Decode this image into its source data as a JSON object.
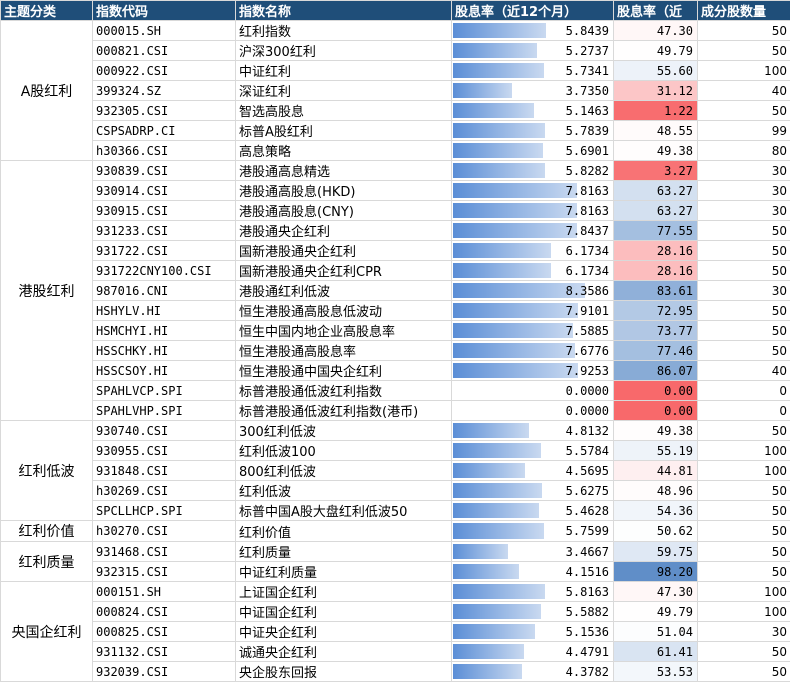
{
  "chart_data": {
    "type": "table",
    "headers": [
      "主题分类",
      "指数代码",
      "指数名称",
      "股息率（近12个月）",
      "股息率（近",
      "成分股数量"
    ],
    "groups": [
      {
        "category": "A股红利",
        "rows": [
          {
            "code": "000015.SH",
            "name": "红利指数",
            "yield": "5.8439",
            "pctile": "47.30",
            "count": "50"
          },
          {
            "code": "000821.CSI",
            "name": "沪深300红利",
            "yield": "5.2737",
            "pctile": "49.79",
            "count": "50"
          },
          {
            "code": "000922.CSI",
            "name": "中证红利",
            "yield": "5.7341",
            "pctile": "55.60",
            "count": "100"
          },
          {
            "code": "399324.SZ",
            "name": "深证红利",
            "yield": "3.7350",
            "pctile": "31.12",
            "count": "40"
          },
          {
            "code": "932305.CSI",
            "name": "智选高股息",
            "yield": "5.1463",
            "pctile": "1.22",
            "count": "50"
          },
          {
            "code": "CSPSADRP.CI",
            "name": "标普A股红利",
            "yield": "5.7839",
            "pctile": "48.55",
            "count": "99"
          },
          {
            "code": "h30366.CSI",
            "name": "高息策略",
            "yield": "5.6901",
            "pctile": "49.38",
            "count": "80"
          }
        ]
      },
      {
        "category": "港股红利",
        "rows": [
          {
            "code": "930839.CSI",
            "name": "港股通高息精选",
            "yield": "5.8282",
            "pctile": "3.27",
            "count": "30"
          },
          {
            "code": "930914.CSI",
            "name": "港股通高股息(HKD)",
            "yield": "7.8163",
            "pctile": "63.27",
            "count": "30"
          },
          {
            "code": "930915.CSI",
            "name": "港股通高股息(CNY)",
            "yield": "7.8163",
            "pctile": "63.27",
            "count": "30"
          },
          {
            "code": "931233.CSI",
            "name": "港股通央企红利",
            "yield": "7.8437",
            "pctile": "77.55",
            "count": "50"
          },
          {
            "code": "931722.CSI",
            "name": "国新港股通央企红利",
            "yield": "6.1734",
            "pctile": "28.16",
            "count": "50"
          },
          {
            "code": "931722CNY100.CSI",
            "name": "国新港股通央企红利CPR",
            "yield": "6.1734",
            "pctile": "28.16",
            "count": "50"
          },
          {
            "code": "987016.CNI",
            "name": "港股通红利低波",
            "yield": "8.3586",
            "pctile": "83.61",
            "count": "30"
          },
          {
            "code": "HSHYLV.HI",
            "name": "恒生港股通高股息低波动",
            "yield": "7.9101",
            "pctile": "72.95",
            "count": "50"
          },
          {
            "code": "HSMCHYI.HI",
            "name": "恒生中国内地企业高股息率",
            "yield": "7.5885",
            "pctile": "73.77",
            "count": "50"
          },
          {
            "code": "HSSCHKY.HI",
            "name": "恒生港股通高股息率",
            "yield": "7.6776",
            "pctile": "77.46",
            "count": "50"
          },
          {
            "code": "HSSCSOY.HI",
            "name": "恒生港股通中国央企红利",
            "yield": "7.9253",
            "pctile": "86.07",
            "count": "40"
          },
          {
            "code": "SPAHLVCP.SPI",
            "name": "标普港股通低波红利指数",
            "yield": "0.0000",
            "pctile": "0.00",
            "count": "0"
          },
          {
            "code": "SPAHLVHP.SPI",
            "name": "标普港股通低波红利指数(港币)",
            "yield": "0.0000",
            "pctile": "0.00",
            "count": "0"
          }
        ]
      },
      {
        "category": "红利低波",
        "rows": [
          {
            "code": "930740.CSI",
            "name": "300红利低波",
            "yield": "4.8132",
            "pctile": "49.38",
            "count": "50"
          },
          {
            "code": "930955.CSI",
            "name": "红利低波100",
            "yield": "5.5784",
            "pctile": "55.19",
            "count": "100"
          },
          {
            "code": "931848.CSI",
            "name": "800红利低波",
            "yield": "4.5695",
            "pctile": "44.81",
            "count": "100"
          },
          {
            "code": "h30269.CSI",
            "name": "红利低波",
            "yield": "5.6275",
            "pctile": "48.96",
            "count": "50"
          },
          {
            "code": "SPCLLHCP.SPI",
            "name": "标普中国A股大盘红利低波50",
            "yield": "5.4628",
            "pctile": "54.36",
            "count": "50"
          }
        ]
      },
      {
        "category": "红利价值",
        "rows": [
          {
            "code": "h30270.CSI",
            "name": "红利价值",
            "yield": "5.7599",
            "pctile": "50.62",
            "count": "50"
          }
        ]
      },
      {
        "category": "红利质量",
        "rows": [
          {
            "code": "931468.CSI",
            "name": "红利质量",
            "yield": "3.4667",
            "pctile": "59.75",
            "count": "50"
          },
          {
            "code": "932315.CSI",
            "name": "中证红利质量",
            "yield": "4.1516",
            "pctile": "98.20",
            "count": "50"
          }
        ]
      },
      {
        "category": "央国企红利",
        "rows": [
          {
            "code": "000151.SH",
            "name": "上证国企红利",
            "yield": "5.8163",
            "pctile": "47.30",
            "count": "100"
          },
          {
            "code": "000824.CSI",
            "name": "中证国企红利",
            "yield": "5.5882",
            "pctile": "49.79",
            "count": "100"
          },
          {
            "code": "000825.CSI",
            "name": "中证央企红利",
            "yield": "5.1536",
            "pctile": "51.04",
            "count": "30"
          },
          {
            "code": "931132.CSI",
            "name": "诚通央企红利",
            "yield": "4.4791",
            "pctile": "61.41",
            "count": "50"
          },
          {
            "code": "932039.CSI",
            "name": "央企股东回报",
            "yield": "4.3782",
            "pctile": "53.53",
            "count": "50"
          }
        ]
      }
    ],
    "yield_axis_max": 8.4,
    "colors": {
      "header_bg": "#1f4e79",
      "header_text": "#ffffff",
      "bar": "#5b8ed6",
      "heat_low": "#f8696b",
      "heat_mid": "#ffffff",
      "heat_high": "#5a8ac6"
    }
  }
}
